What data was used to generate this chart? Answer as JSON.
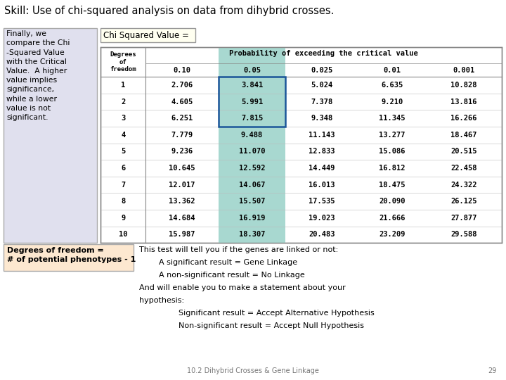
{
  "title": "Skill: Use of chi-squared analysis on data from dihybrid crosses.",
  "title_bg": "#f2d0d0",
  "left_box_text": "Finally, we\ncompare the Chi\n-Squared Value\nwith the Critical\nValue.  A higher\nvalue implies\nsignificance,\nwhile a lower\nvalue is not\nsignificant.",
  "left_box_bg": "#e0e0ee",
  "chi_label": "Chi Squared Value =",
  "chi_label_bg": "#fffff0",
  "chi_label_border": "#999999",
  "table_prob_headers": [
    "0.10",
    "0.05",
    "0.025",
    "0.01",
    "0.001"
  ],
  "table_data": [
    [
      1,
      2.706,
      3.841,
      5.024,
      6.635,
      10.828
    ],
    [
      2,
      4.605,
      5.991,
      7.378,
      9.21,
      13.816
    ],
    [
      3,
      6.251,
      7.815,
      9.348,
      11.345,
      16.266
    ],
    [
      4,
      7.779,
      9.488,
      11.143,
      13.277,
      18.467
    ],
    [
      5,
      9.236,
      11.07,
      12.833,
      15.086,
      20.515
    ],
    [
      6,
      10.645,
      12.592,
      14.449,
      16.812,
      22.458
    ],
    [
      7,
      12.017,
      14.067,
      16.013,
      18.475,
      24.322
    ],
    [
      8,
      13.362,
      15.507,
      17.535,
      20.09,
      26.125
    ],
    [
      9,
      14.684,
      16.919,
      19.023,
      21.666,
      27.877
    ],
    [
      10,
      15.987,
      18.307,
      20.483,
      23.209,
      29.588
    ]
  ],
  "highlight_col_bg": "#a8d8d0",
  "highlight_box_border": "#1a5599",
  "table_bg": "#ffffff",
  "table_border": "#888888",
  "degrees_box_text": "Degrees of freedom =\n# of potential phenotypes - 1",
  "degrees_box_bg": "#fde8d0",
  "degrees_box_border": "#aaaaaa",
  "footer_text": "10.2 Dihybrid Crosses & Gene Linkage",
  "footer_page": "29",
  "bg_color": "#ffffff"
}
